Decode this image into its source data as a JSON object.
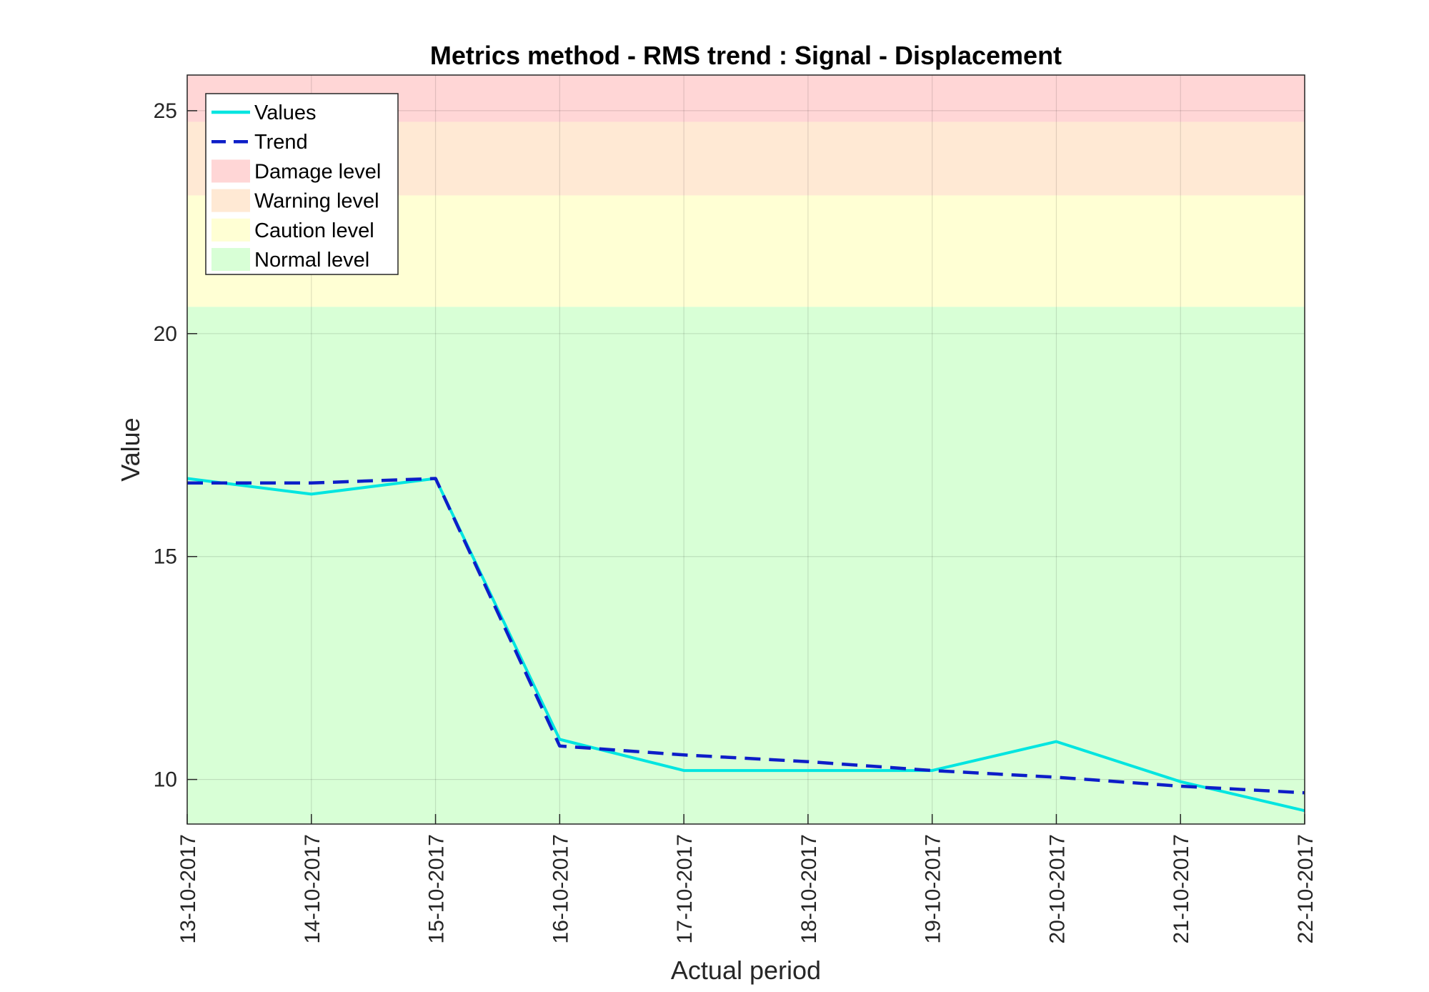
{
  "chart_data": {
    "type": "line",
    "title": "Metrics method - RMS trend : Signal - Displacement",
    "xlabel": "Actual period",
    "ylabel": "Value",
    "x": [
      "13-10-2017",
      "14-10-2017",
      "15-10-2017",
      "16-10-2017",
      "17-10-2017",
      "18-10-2017",
      "19-10-2017",
      "20-10-2017",
      "21-10-2017",
      "22-10-2017"
    ],
    "ylim": [
      9,
      25.8
    ],
    "yticks": [
      10,
      15,
      20,
      25
    ],
    "grid": true,
    "legend_position": "top-left",
    "series": [
      {
        "name": "Values",
        "style": "solid",
        "color": "#00e5e0",
        "values": [
          16.75,
          16.4,
          16.75,
          10.9,
          10.2,
          10.2,
          10.2,
          10.85,
          9.95,
          9.3
        ]
      },
      {
        "name": "Trend",
        "style": "dashed",
        "color": "#0d1ec8",
        "values": [
          16.65,
          16.65,
          16.75,
          10.75,
          10.55,
          10.4,
          10.2,
          10.05,
          9.85,
          9.7
        ]
      }
    ],
    "levels": [
      {
        "name": "Damage level",
        "from": 24.75,
        "to": 25.8,
        "color": "#ffd6d6"
      },
      {
        "name": "Warning level",
        "from": 23.1,
        "to": 24.75,
        "color": "#ffe9d4"
      },
      {
        "name": "Caution level",
        "from": 20.6,
        "to": 23.1,
        "color": "#ffffd4"
      },
      {
        "name": "Normal level",
        "from": 9,
        "to": 20.6,
        "color": "#d8ffd6"
      }
    ]
  }
}
